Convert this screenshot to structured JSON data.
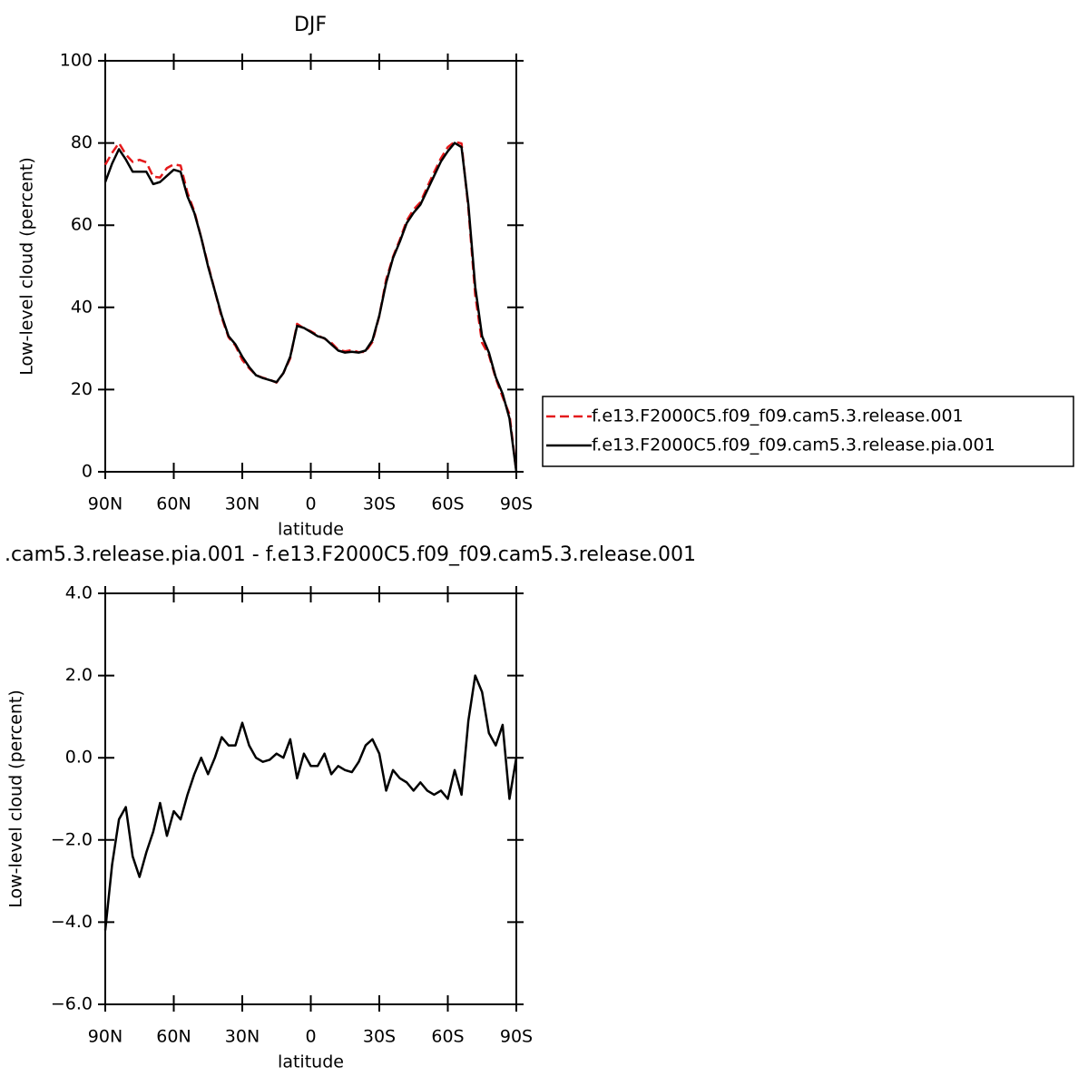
{
  "chart_data": [
    {
      "type": "line",
      "title": "DJF",
      "xlabel": "latitude",
      "ylabel": "Low-level cloud (percent)",
      "x": [
        90,
        87,
        84,
        81,
        78,
        75,
        72,
        69,
        66,
        63,
        60,
        57,
        54,
        51,
        48,
        45,
        42,
        39,
        36,
        33,
        30,
        27,
        24,
        21,
        18,
        15,
        12,
        9,
        6,
        3,
        0,
        -3,
        -6,
        -9,
        -12,
        -15,
        -18,
        -21,
        -24,
        -27,
        -30,
        -33,
        -36,
        -39,
        -42,
        -45,
        -48,
        -51,
        -54,
        -57,
        -60,
        -63,
        -66,
        -69,
        -72,
        -75,
        -78,
        -81,
        -84,
        -87,
        -90
      ],
      "series": [
        {
          "name": "f.e13.F2000C5.f09_f09.cam5.3.release.001",
          "color": "#e41a1c",
          "dashed": true,
          "values": [
            74.7,
            77.6,
            80,
            77.2,
            75.4,
            75.9,
            75.3,
            71.8,
            71.6,
            73.9,
            74.8,
            74.5,
            67.9,
            63.4,
            57,
            50.4,
            44,
            37.5,
            32.7,
            30.7,
            27.2,
            25.2,
            23.5,
            22.9,
            22.4,
            21.7,
            24,
            27.6,
            36,
            34.9,
            34.2,
            33.2,
            32.4,
            31.4,
            29.7,
            29.3,
            29.6,
            29.1,
            29.2,
            31.6,
            37.9,
            46.8,
            52.3,
            56.5,
            61.1,
            63.8,
            65.6,
            69.3,
            72.9,
            76.3,
            79,
            80.3,
            79.9,
            64.1,
            43,
            31.4,
            28.4,
            22.7,
            18.2,
            14,
            0
          ]
        },
        {
          "name": "f.e13.F2000C5.f09_f09.cam5.3.release.pia.001",
          "color": "#000000",
          "dashed": false,
          "values": [
            70.5,
            75,
            78.5,
            76,
            73,
            73,
            73,
            70,
            70.5,
            72,
            73.5,
            73,
            67,
            63,
            57,
            50,
            44,
            38,
            33,
            31,
            28,
            25.5,
            23.5,
            22.8,
            22.3,
            21.8,
            24,
            28,
            35.5,
            35,
            34,
            33,
            32.5,
            31,
            29.5,
            29,
            29.2,
            29,
            29.5,
            32,
            38,
            46,
            52,
            56,
            60.5,
            63,
            65,
            68.5,
            72,
            75.5,
            78,
            80,
            79,
            65,
            45,
            33,
            29,
            23,
            19,
            13,
            0
          ]
        }
      ],
      "xlim": [
        90,
        -90
      ],
      "xticks": [
        {
          "value": 90,
          "label": "90N"
        },
        {
          "value": 60,
          "label": "60N"
        },
        {
          "value": 30,
          "label": "30N"
        },
        0,
        {
          "value": -30,
          "label": "30S"
        },
        {
          "value": -60,
          "label": "60S"
        },
        {
          "value": -90,
          "label": "90S"
        }
      ],
      "ylim": [
        0,
        100
      ],
      "yticks": [
        0,
        20,
        40,
        60,
        80,
        100
      ],
      "legend": "outside right"
    },
    {
      "type": "line",
      "title": ".cam5.3.release.pia.001 - f.e13.F2000C5.f09_f09.cam5.3.release.001",
      "xlabel": "latitude",
      "ylabel": "Low-level cloud (percent)",
      "x": [
        90,
        87,
        84,
        81,
        78,
        75,
        72,
        69,
        66,
        63,
        60,
        57,
        54,
        51,
        48,
        45,
        42,
        39,
        36,
        33,
        30,
        27,
        24,
        21,
        18,
        15,
        12,
        9,
        6,
        3,
        0,
        -3,
        -6,
        -9,
        -12,
        -15,
        -18,
        -21,
        -24,
        -27,
        -30,
        -33,
        -36,
        -39,
        -42,
        -45,
        -48,
        -51,
        -54,
        -57,
        -60,
        -63,
        -66,
        -69,
        -72,
        -75,
        -78,
        -81,
        -84,
        -87,
        -90
      ],
      "series": [
        {
          "color": "#000000",
          "dashed": false,
          "values": [
            -4.2,
            -2.6,
            -1.5,
            -1.2,
            -2.4,
            -2.9,
            -2.3,
            -1.8,
            -1.1,
            -1.9,
            -1.3,
            -1.5,
            -0.9,
            -0.4,
            0,
            -0.4,
            0,
            0.5,
            0.3,
            0.3,
            0.85,
            0.3,
            0,
            -0.1,
            -0.05,
            0.1,
            0,
            0.45,
            -0.5,
            0.1,
            -0.2,
            -0.2,
            0.1,
            -0.4,
            -0.2,
            -0.3,
            -0.35,
            -0.1,
            0.3,
            0.45,
            0.1,
            -0.8,
            -0.3,
            -0.5,
            -0.6,
            -0.8,
            -0.6,
            -0.8,
            -0.9,
            -0.8,
            -1,
            -0.3,
            -0.9,
            0.9,
            2,
            1.6,
            0.6,
            0.3,
            0.8,
            -1,
            0
          ]
        }
      ],
      "xlim": [
        90,
        -90
      ],
      "xticks": [
        {
          "value": 90,
          "label": "90N"
        },
        {
          "value": 60,
          "label": "60N"
        },
        {
          "value": 30,
          "label": "30N"
        },
        0,
        {
          "value": -30,
          "label": "30S"
        },
        {
          "value": -60,
          "label": "60S"
        },
        {
          "value": -90,
          "label": "90S"
        }
      ],
      "ylim": [
        -6,
        4
      ],
      "yticks": [
        {
          "value": -6,
          "label": "−6.0"
        },
        {
          "value": -4,
          "label": "−4.0"
        },
        {
          "value": -2,
          "label": "−2.0"
        },
        {
          "value": 0,
          "label": "0.0"
        },
        {
          "value": 2,
          "label": "2.0"
        },
        {
          "value": 4,
          "label": "4.0"
        }
      ]
    }
  ]
}
